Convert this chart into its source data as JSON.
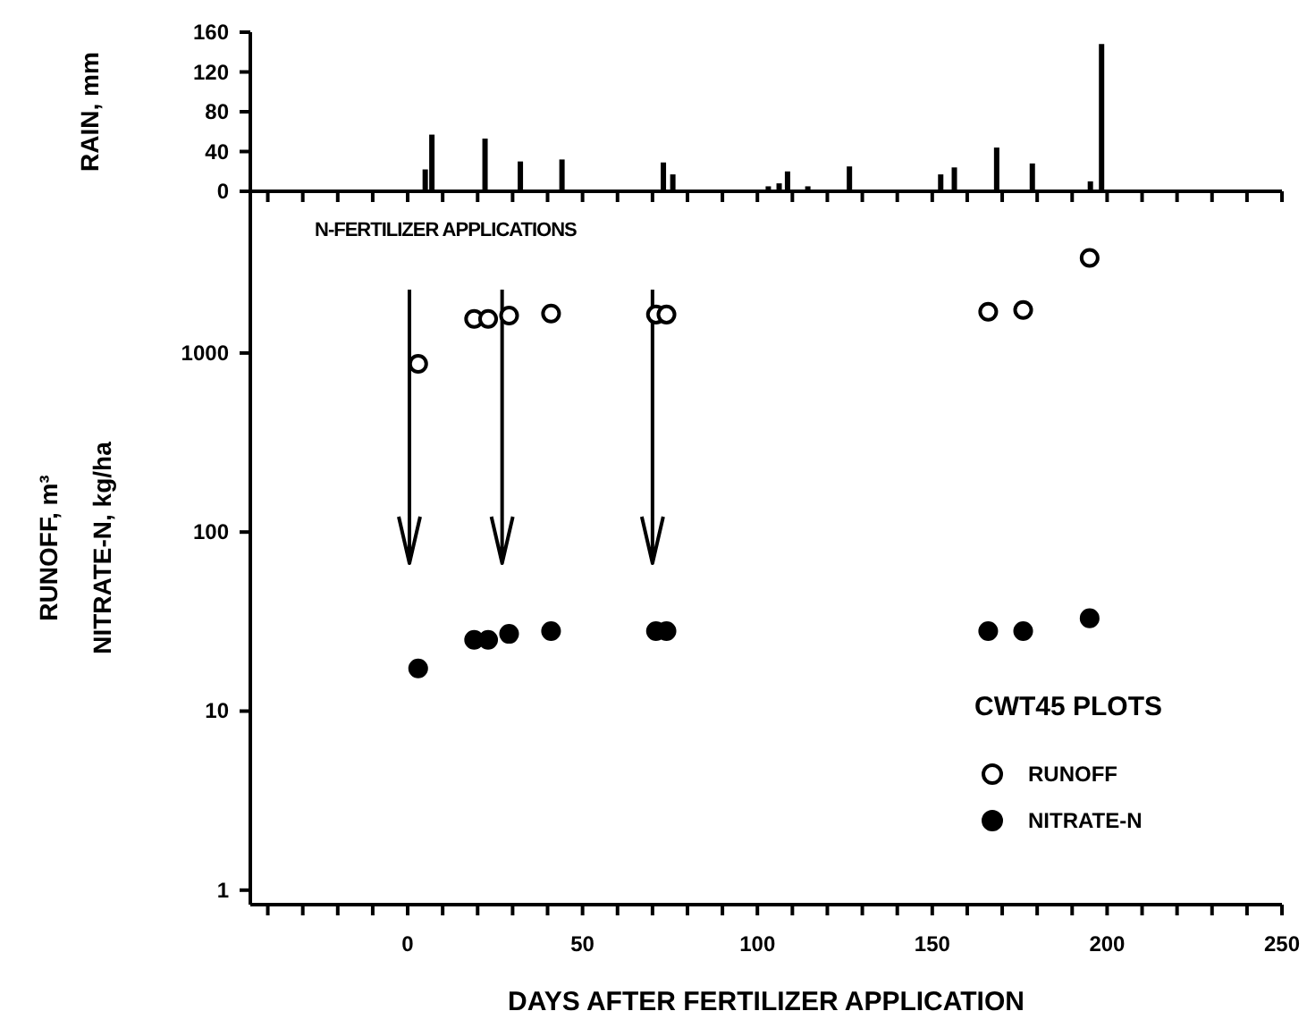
{
  "chart_data": [
    {
      "type": "bar",
      "ylabel": "RAIN, mm",
      "x": [
        5.2,
        7.1,
        22.3,
        32.4,
        44.3,
        56.6,
        73.3,
        76,
        87.5,
        103.3,
        106.4,
        108.8,
        114.6,
        126.5,
        152.6,
        156.5,
        168.6,
        178.8,
        192.4,
        195.4,
        198.6
      ],
      "values": [
        22,
        57,
        53,
        30,
        32,
        null,
        29,
        17,
        null,
        5,
        8,
        20,
        5,
        25,
        17,
        24,
        44,
        28,
        null,
        10,
        148
      ],
      "color": "#000000",
      "xlim": [
        -45,
        250
      ],
      "xticks": [
        {
          "value": -40,
          "label": null
        },
        {
          "value": -30,
          "label": null
        },
        {
          "value": -20,
          "label": null
        },
        {
          "value": -10,
          "label": null
        },
        {
          "value": 0,
          "label": null
        },
        {
          "value": 10,
          "label": null
        },
        {
          "value": 20,
          "label": null
        },
        {
          "value": 30,
          "label": null
        },
        {
          "value": 40,
          "label": null
        },
        {
          "value": 50,
          "label": null
        },
        {
          "value": 60,
          "label": null
        },
        {
          "value": 70,
          "label": null
        },
        {
          "value": 80,
          "label": null
        },
        {
          "value": 90,
          "label": null
        },
        {
          "value": 100,
          "label": null
        },
        {
          "value": 110,
          "label": null
        },
        {
          "value": 120,
          "label": null
        },
        {
          "value": 130,
          "label": null
        },
        {
          "value": 140,
          "label": null
        },
        {
          "value": 150,
          "label": null
        },
        {
          "value": 160,
          "label": null
        },
        {
          "value": 170,
          "label": null
        },
        {
          "value": 180,
          "label": null
        },
        {
          "value": 190,
          "label": null
        },
        {
          "value": 200,
          "label": null
        },
        {
          "value": 210,
          "label": null
        },
        {
          "value": 220,
          "label": null
        },
        {
          "value": 230,
          "label": null
        },
        {
          "value": 240,
          "label": null
        },
        {
          "value": 250,
          "label": null
        }
      ],
      "ylim": [
        0,
        160
      ],
      "yticks": [
        0,
        40,
        80,
        120,
        160
      ],
      "tick_labels": "y"
    },
    {
      "type": "scatter",
      "xlabel": "DAYS AFTER FERTILIZER APPLICATION",
      "ylabel": "RUNOFF, m³\nNITRATE-N, kg/ha",
      "legend_title": "CWT45 PLOTS",
      "legend": "bottom right",
      "marker": "circle",
      "log": "y",
      "annotations": [
        "N-FERTILIZER APPLICATIONS"
      ],
      "x": [
        3,
        19,
        23,
        29,
        41,
        71,
        74,
        166,
        176,
        195
      ],
      "series": [
        {
          "name": "RUNOFF",
          "color": "#000000",
          "values": [
            870,
            1550,
            1550,
            1620,
            1660,
            1640,
            1640,
            1700,
            1740,
            3400
          ]
        },
        {
          "name": "NITRATE-N",
          "color": "#000000",
          "values": [
            17.3,
            25,
            25,
            27,
            28,
            28,
            28,
            28,
            28,
            33
          ]
        }
      ],
      "ref_lines": [
        {
          "axis": "x",
          "value": 0.5
        },
        {
          "axis": "x",
          "value": 27
        },
        {
          "axis": "x",
          "value": 70
        }
      ],
      "xlim": [
        -45,
        250
      ],
      "xticks": [
        {
          "value": -40,
          "label": null
        },
        {
          "value": -30,
          "label": null
        },
        {
          "value": -20,
          "label": null
        },
        {
          "value": -10,
          "label": null
        },
        0,
        {
          "value": 10,
          "label": null
        },
        {
          "value": 20,
          "label": null
        },
        {
          "value": 30,
          "label": null
        },
        {
          "value": 40,
          "label": null
        },
        50,
        {
          "value": 60,
          "label": null
        },
        {
          "value": 70,
          "label": null
        },
        {
          "value": 80,
          "label": null
        },
        {
          "value": 90,
          "label": null
        },
        100,
        {
          "value": 110,
          "label": null
        },
        {
          "value": 120,
          "label": null
        },
        {
          "value": 130,
          "label": null
        },
        {
          "value": 140,
          "label": null
        },
        150,
        {
          "value": 160,
          "label": null
        },
        {
          "value": 170,
          "label": null
        },
        {
          "value": 180,
          "label": null
        },
        {
          "value": 190,
          "label": null
        },
        200,
        {
          "value": 210,
          "label": null
        },
        {
          "value": 220,
          "label": null
        },
        {
          "value": 230,
          "label": null
        },
        {
          "value": 240,
          "label": null
        },
        250
      ],
      "ylim": [
        0.83,
        8000
      ],
      "yticks": [
        1,
        10,
        100,
        1000
      ]
    }
  ]
}
